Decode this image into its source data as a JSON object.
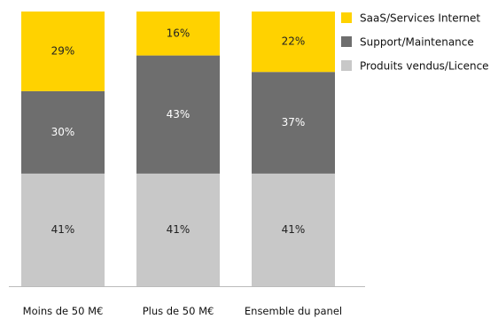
{
  "chart_data": {
    "type": "bar",
    "stacked": true,
    "categories": [
      "Moins de 50 M€",
      "Plus de 50 M€",
      "Ensemble du panel"
    ],
    "series": [
      {
        "name": "Produits vendus/Licence",
        "values": [
          41,
          41,
          41
        ],
        "color": "#c8c8c8",
        "label_color": "#222222"
      },
      {
        "name": "Support/Maintenance",
        "values": [
          30,
          43,
          37
        ],
        "color": "#6e6e6e",
        "label_color": "#ffffff"
      },
      {
        "name": "SaaS/Services Internet",
        "values": [
          29,
          16,
          22
        ],
        "color": "#ffd200",
        "label_color": "#222222"
      }
    ],
    "legend_order": [
      "SaaS/Services Internet",
      "Support/Maintenance",
      "Produits vendus/Licence"
    ],
    "legend_position": "top-right",
    "value_suffix": "%",
    "ylim": [
      0,
      100
    ],
    "grid": false
  }
}
